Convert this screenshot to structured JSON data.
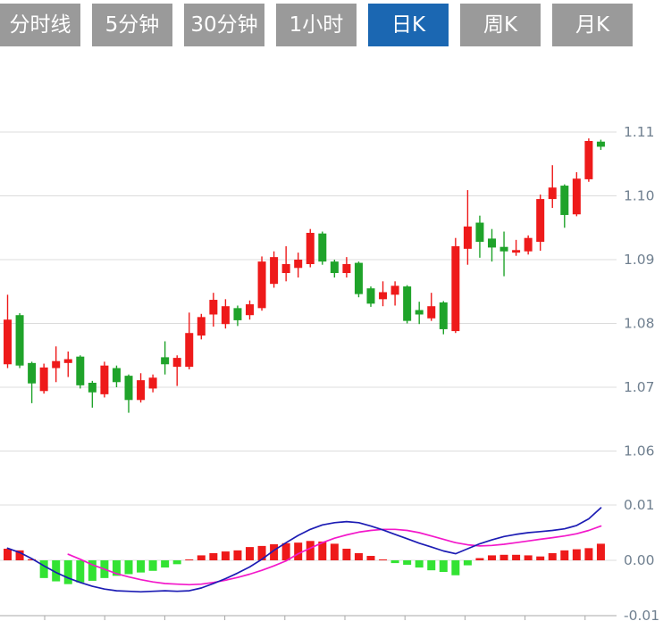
{
  "tabs": [
    {
      "label": "分时线",
      "active": false
    },
    {
      "label": "5分钟",
      "active": false
    },
    {
      "label": "30分钟",
      "active": false
    },
    {
      "label": "1小时",
      "active": false
    },
    {
      "label": "日K",
      "active": true
    },
    {
      "label": "周K",
      "active": false
    },
    {
      "label": "月K",
      "active": false
    }
  ],
  "colors": {
    "up": "#ee1a1a",
    "down_candle": "#1fa32a",
    "down_hist": "#33e333",
    "dif_line": "#1c1cb4",
    "dea_line": "#f318ca",
    "grid": "#dcdcdc",
    "axis_line": "#a8a8a8",
    "axis_text": "#708090",
    "tab_bg": "#9a9a9a",
    "tab_active_bg": "#1b67b2",
    "tab_text": "#ffffff"
  },
  "chart_data": {
    "type": "candlestick-with-macd",
    "convention": "red = up (close > open), green = down (Chinese market convention)",
    "price_axis": {
      "max": 1.11,
      "min": 1.06,
      "ticks": [
        "1.11",
        "1.10",
        "1.09",
        "1.08",
        "1.07",
        "1.06"
      ]
    },
    "macd_axis": {
      "max": 0.01,
      "min": -0.01,
      "ticks": [
        "0.01",
        "0.00",
        "-0.01"
      ]
    },
    "grid": true,
    "candles_ohlc_order": [
      "open",
      "close",
      "high",
      "low"
    ],
    "candles": [
      [
        1.0736,
        1.0806,
        1.0845,
        1.073
      ],
      [
        1.0813,
        1.0734,
        1.0816,
        1.073
      ],
      [
        1.0738,
        1.0706,
        1.074,
        1.0675
      ],
      [
        1.0694,
        1.0731,
        1.0737,
        1.069
      ],
      [
        1.073,
        1.0741,
        1.0764,
        1.0708
      ],
      [
        1.0738,
        1.0744,
        1.0756,
        1.0716
      ],
      [
        1.0748,
        1.0703,
        1.075,
        1.0698
      ],
      [
        1.0707,
        1.0692,
        1.071,
        1.0668
      ],
      [
        1.0689,
        1.0734,
        1.074,
        1.0684
      ],
      [
        1.073,
        1.0708,
        1.0734,
        1.07
      ],
      [
        1.0718,
        1.068,
        1.072,
        1.066
      ],
      [
        1.068,
        1.0711,
        1.0722,
        1.0676
      ],
      [
        1.0698,
        1.0715,
        1.072,
        1.0692
      ],
      [
        1.0747,
        1.0736,
        1.0772,
        1.072
      ],
      [
        1.0732,
        1.0746,
        1.075,
        1.0702
      ],
      [
        1.0732,
        1.0785,
        1.0817,
        1.0728
      ],
      [
        1.0781,
        1.081,
        1.0815,
        1.0775
      ],
      [
        1.0814,
        1.0837,
        1.0848,
        1.0795
      ],
      [
        1.0799,
        1.0827,
        1.0838,
        1.0792
      ],
      [
        1.0824,
        1.0805,
        1.0828,
        1.0796
      ],
      [
        1.0813,
        1.083,
        1.0836,
        1.0806
      ],
      [
        1.0824,
        1.0897,
        1.0905,
        1.082
      ],
      [
        1.0862,
        1.0904,
        1.0913,
        1.0856
      ],
      [
        1.0879,
        1.0893,
        1.0921,
        1.0866
      ],
      [
        1.0887,
        1.09,
        1.0911,
        1.0872
      ],
      [
        1.0893,
        1.0942,
        1.0948,
        1.0888
      ],
      [
        1.0941,
        1.0897,
        1.0944,
        1.0892
      ],
      [
        1.0897,
        1.0879,
        1.09,
        1.0872
      ],
      [
        1.0879,
        1.0893,
        1.0904,
        1.0872
      ],
      [
        1.0895,
        1.0846,
        1.0897,
        1.0841
      ],
      [
        1.0855,
        1.0831,
        1.0858,
        1.0826
      ],
      [
        1.0838,
        1.0849,
        1.0866,
        1.0827
      ],
      [
        1.0845,
        1.0859,
        1.0866,
        1.0828
      ],
      [
        1.0858,
        1.0804,
        1.086,
        1.08
      ],
      [
        1.0821,
        1.0814,
        1.0834,
        1.0799
      ],
      [
        1.0808,
        1.0827,
        1.0848,
        1.0804
      ],
      [
        1.0833,
        1.0791,
        1.0835,
        1.0783
      ],
      [
        1.0788,
        1.0921,
        1.0934,
        1.0785
      ],
      [
        1.0917,
        1.0952,
        1.1009,
        1.0892
      ],
      [
        1.0958,
        1.0928,
        1.0969,
        1.0903
      ],
      [
        1.0933,
        1.0919,
        1.0948,
        1.0897
      ],
      [
        1.092,
        1.0913,
        1.0944,
        1.0874
      ],
      [
        1.0911,
        1.0915,
        1.0931,
        1.0906
      ],
      [
        1.0913,
        1.0934,
        1.0938,
        1.0908
      ],
      [
        1.0928,
        1.0995,
        1.1002,
        1.0914
      ],
      [
        1.0995,
        1.1013,
        1.1048,
        1.0981
      ],
      [
        1.1016,
        1.097,
        1.1018,
        1.095
      ],
      [
        1.0971,
        1.1027,
        1.1037,
        1.0968
      ],
      [
        1.1026,
        1.1086,
        1.109,
        1.1022
      ],
      [
        1.1085,
        1.1077,
        1.1088,
        1.1072
      ]
    ],
    "macd": {
      "histogram": [
        0.0021,
        0.0018,
        0.0002,
        -0.0032,
        -0.0038,
        -0.0043,
        -0.004,
        -0.0037,
        -0.0032,
        -0.0028,
        -0.0025,
        -0.0022,
        -0.0019,
        -0.0013,
        -0.0007,
        0.0001,
        0.0009,
        0.0013,
        0.0016,
        0.0018,
        0.0024,
        0.0026,
        0.0029,
        0.0031,
        0.0032,
        0.0035,
        0.0034,
        0.003,
        0.0021,
        0.0013,
        0.0008,
        0.0001,
        -0.0005,
        -0.0008,
        -0.0013,
        -0.0018,
        -0.0021,
        -0.0027,
        -0.0009,
        0.0004,
        0.0009,
        0.001,
        0.001,
        0.0009,
        0.0007,
        0.0013,
        0.0018,
        0.002,
        0.0022,
        0.003
      ],
      "dif": [
        0.0022,
        0.0014,
        0.0003,
        -0.001,
        -0.0022,
        -0.0032,
        -0.004,
        -0.0047,
        -0.0052,
        -0.0055,
        -0.0056,
        -0.0057,
        -0.0056,
        -0.0055,
        -0.0056,
        -0.0055,
        -0.005,
        -0.0042,
        -0.0033,
        -0.0023,
        -0.0012,
        0.0002,
        0.0018,
        0.0032,
        0.0045,
        0.0056,
        0.0064,
        0.0068,
        0.007,
        0.0068,
        0.0062,
        0.0055,
        0.0047,
        0.0039,
        0.0031,
        0.0024,
        0.0017,
        0.0012,
        0.0021,
        0.003,
        0.0037,
        0.0043,
        0.0047,
        0.005,
        0.0052,
        0.0054,
        0.0057,
        0.0063,
        0.0075,
        0.0095
      ],
      "dea": [
        null,
        null,
        null,
        null,
        null,
        0.0011,
        0.0002,
        -0.0008,
        -0.0016,
        -0.0024,
        -0.003,
        -0.0035,
        -0.0039,
        -0.0042,
        -0.0043,
        -0.0044,
        -0.0043,
        -0.004,
        -0.0036,
        -0.0031,
        -0.0025,
        -0.0018,
        -0.001,
        -0.0001,
        0.0012,
        0.0022,
        0.0032,
        0.004,
        0.0046,
        0.0051,
        0.0054,
        0.0056,
        0.0056,
        0.0054,
        0.005,
        0.0044,
        0.0038,
        0.0032,
        0.0028,
        0.0026,
        0.0027,
        0.0029,
        0.0032,
        0.0035,
        0.0038,
        0.0041,
        0.0044,
        0.0048,
        0.0054,
        0.0062
      ]
    }
  }
}
